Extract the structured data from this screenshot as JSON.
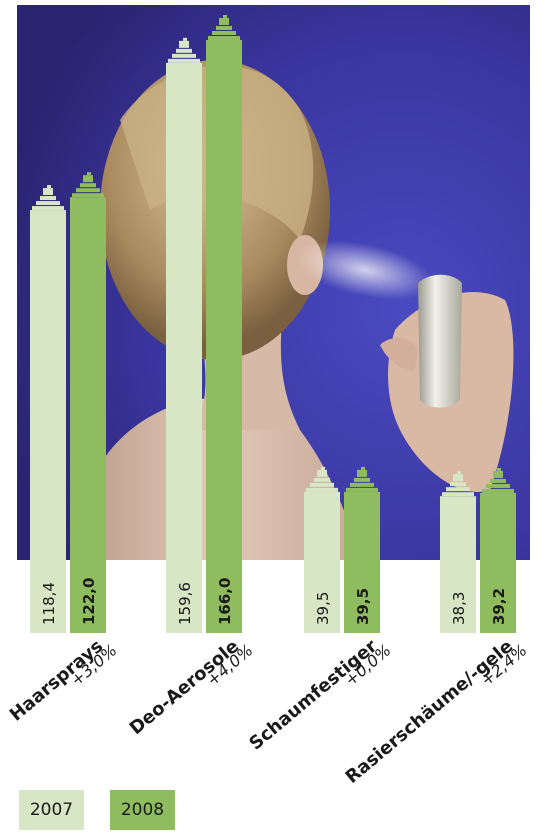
{
  "chart_data": {
    "type": "bar",
    "categories": [
      "Haarsprays",
      "Deo-Aerosole",
      "Schaumfestiger",
      "Rasierschäume/-gele"
    ],
    "changes": [
      "+3,0%",
      "+4,0%",
      "+0,0%",
      "+2,4%"
    ],
    "series": [
      {
        "name": "2007",
        "values": [
          118.4,
          159.6,
          39.5,
          38.3
        ],
        "labels": [
          "118,4",
          "159,6",
          "39,5",
          "38,3"
        ],
        "color": "#d7e6c4"
      },
      {
        "name": "2008",
        "values": [
          122.0,
          166.0,
          39.5,
          39.2
        ],
        "labels": [
          "122,0",
          "166,0",
          "39,5",
          "39,2"
        ],
        "color": "#8fbc5e"
      }
    ],
    "ylim": [
      0,
      166
    ],
    "grid": false,
    "legend": "bottom-left"
  },
  "colors": {
    "light_bar": "#d7e6c4",
    "dark_bar": "#8fbc5e",
    "text": "#1a1a1a"
  }
}
